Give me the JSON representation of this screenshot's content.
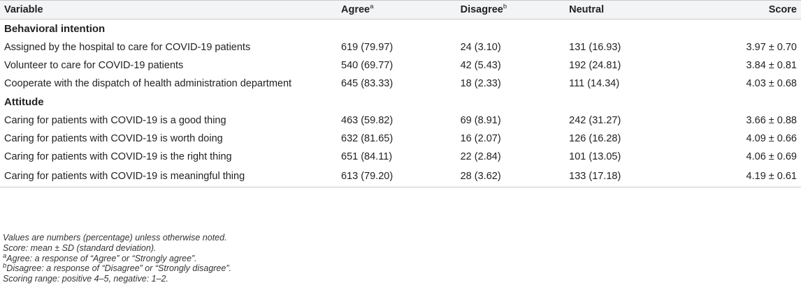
{
  "headers": {
    "variable": "Variable",
    "agree": "Agree",
    "agree_sup": "a",
    "disagree": "Disagree",
    "disagree_sup": "b",
    "neutral": "Neutral",
    "score": "Score"
  },
  "sections": [
    {
      "title": "Behavioral intention",
      "rows": [
        {
          "variable": "Assigned by the hospital to care for COVID-19 patients",
          "agree": "619 (79.97)",
          "disagree": "24 (3.10)",
          "neutral": "131 (16.93)",
          "score": "3.97 ± 0.70"
        },
        {
          "variable": "Volunteer to care for COVID-19 patients",
          "agree": "540 (69.77)",
          "disagree": "42 (5.43)",
          "neutral": "192 (24.81)",
          "score": "3.84 ± 0.81"
        },
        {
          "variable": "Cooperate with the dispatch of health administration department",
          "agree": "645 (83.33)",
          "disagree": "18 (2.33)",
          "neutral": "111 (14.34)",
          "score": "4.03 ± 0.68"
        }
      ]
    },
    {
      "title": "Attitude",
      "rows": [
        {
          "variable": "Caring for patients with COVID-19 is a good thing",
          "agree": "463 (59.82)",
          "disagree": "69 (8.91)",
          "neutral": "242 (31.27)",
          "score": "3.66 ± 0.88"
        },
        {
          "variable": "Caring for patients with COVID-19 is worth doing",
          "agree": "632 (81.65)",
          "disagree": "16 (2.07)",
          "neutral": "126 (16.28)",
          "score": "4.09 ± 0.66"
        },
        {
          "variable": "Caring for patients with COVID-19 is the right thing",
          "agree": "651 (84.11)",
          "disagree": "22 (2.84)",
          "neutral": "101 (13.05)",
          "score": "4.06 ± 0.69"
        },
        {
          "variable": "Caring for patients with COVID-19 is meaningful thing",
          "agree": "613 (79.20)",
          "disagree": "28 (3.62)",
          "neutral": "133 (17.18)",
          "score": "4.19 ± 0.61"
        }
      ]
    }
  ],
  "notes": {
    "values": "Values are numbers (percentage) unless otherwise noted.",
    "score": "Score: mean ± SD (standard deviation).",
    "agree_sup": "a",
    "agree": "Agree: a response of “Agree” or “Strongly agree”.",
    "disagree_sup": "b",
    "disagree": "Disagree: a response of “Disagree” or “Strongly disagree”.",
    "range": "Scoring range: positive 4–5, negative: 1–2."
  }
}
